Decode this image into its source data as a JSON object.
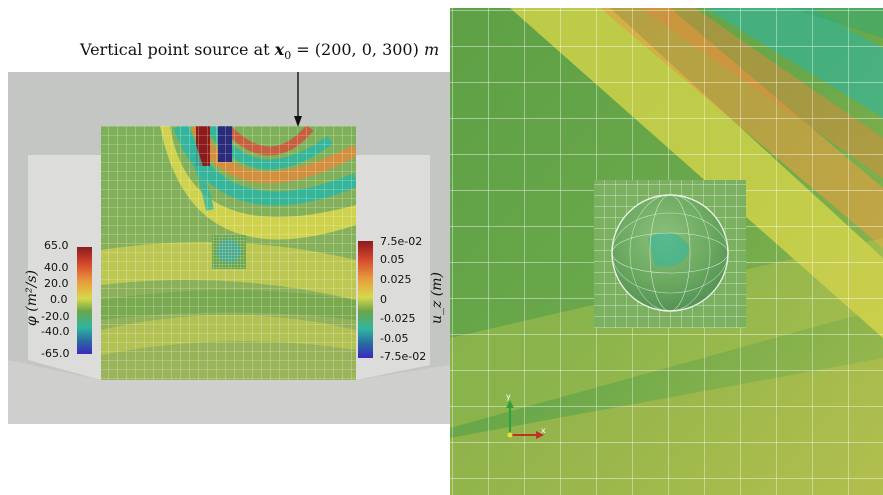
{
  "annotation": {
    "prefix": "Vertical point source at ",
    "symbol": "x",
    "subscript": "0",
    "equals": " = (200, 0, 300) ",
    "unit": "m"
  },
  "colorbar_phi": {
    "title": "φ (m²/s)",
    "ticks": [
      "65.0",
      "40.0",
      "20.0",
      "0.0",
      "-20.0",
      "-40.0",
      "-65.0"
    ]
  },
  "colorbar_uz": {
    "title": "u_z (m)",
    "ticks": [
      "7.5e-02",
      "0.05",
      "0.025",
      "0",
      "-0.025",
      "-0.05",
      "-7.5e-02"
    ]
  },
  "axes_widget": {
    "y_label": "y",
    "x_label": "x"
  },
  "colors": {
    "background_gray": "#c4c6c4",
    "mid_green": "#6aa54a",
    "yellow": "#dcd84a",
    "orange": "#e08a3a",
    "teal": "#2fb6a0",
    "dark_red": "#8c1c1c",
    "navy": "#2a2b7a"
  }
}
